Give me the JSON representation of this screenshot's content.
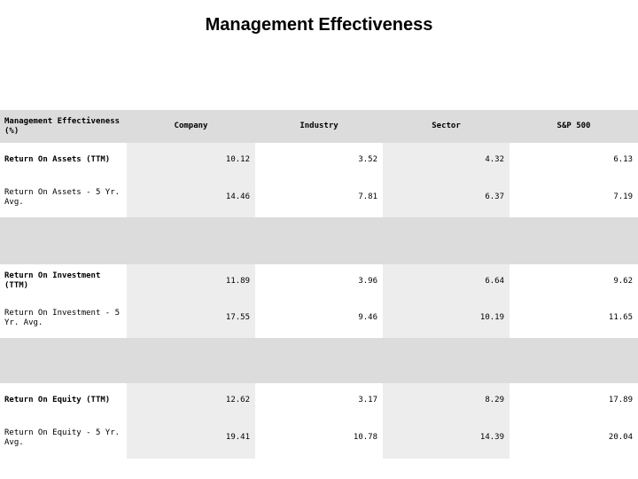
{
  "page": {
    "title": "Management Effectiveness"
  },
  "colors": {
    "header_band_gray": "#dcdcdc",
    "column_stripe_gray": "#ededed",
    "text_color": "#000000",
    "background": "#ffffff"
  },
  "table": {
    "header": {
      "metric_column_line1": "Management Effectiveness",
      "metric_column_line2": "(%)",
      "columns": [
        "Company",
        "Industry",
        "Sector",
        "S&P 500"
      ]
    },
    "rows": [
      {
        "label": "Return On Assets (TTM)",
        "values": [
          "10.12",
          "3.52",
          "4.32",
          "6.13"
        ]
      },
      {
        "label": "Return On Assets - 5 Yr. Avg.",
        "values": [
          "14.46",
          "7.81",
          "6.37",
          "7.19"
        ]
      },
      {
        "label": "Return On Investment (TTM)",
        "values": [
          "11.89",
          "3.96",
          "6.64",
          "9.62"
        ]
      },
      {
        "label": "Return On Investment - 5 Yr. Avg.",
        "values": [
          "17.55",
          "9.46",
          "10.19",
          "11.65"
        ]
      },
      {
        "label": "Return On Equity (TTM)",
        "values": [
          "12.62",
          "3.17",
          "8.29",
          "17.89"
        ]
      },
      {
        "label": "Return On Equity - 5 Yr. Avg.",
        "values": [
          "19.41",
          "10.78",
          "14.39",
          "20.04"
        ]
      }
    ]
  }
}
